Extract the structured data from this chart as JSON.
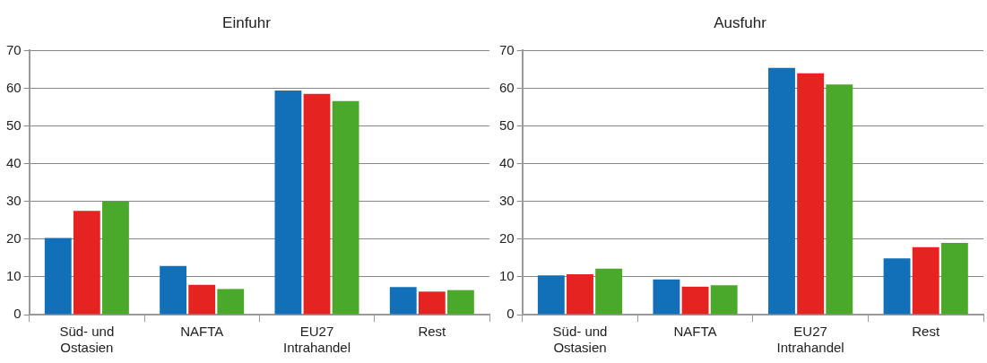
{
  "chart_data": [
    {
      "type": "bar",
      "title": "Einfuhr",
      "categories": [
        "Süd- und\nOstasien",
        "NAFTA",
        "EU27\nIntrahandel",
        "Rest"
      ],
      "series": [
        {
          "color": "#1170b8",
          "values": [
            20.3,
            12.9,
            59.4,
            7.3
          ]
        },
        {
          "color": "#e52421",
          "values": [
            27.5,
            7.9,
            58.5,
            6.1
          ]
        },
        {
          "color": "#4aa92a",
          "values": [
            30,
            6.8,
            56.6,
            6.5
          ]
        }
      ],
      "ylim": [
        0,
        70
      ],
      "yticks": [
        0,
        10,
        20,
        30,
        40,
        50,
        60,
        70
      ],
      "grid": "y",
      "legend": false
    },
    {
      "type": "bar",
      "title": "Ausfuhr",
      "categories": [
        "Süd- und\nOstasien",
        "NAFTA",
        "EU27\nIntrahandel",
        "Rest"
      ],
      "series": [
        {
          "color": "#1170b8",
          "values": [
            10.4,
            9.3,
            65.4,
            14.9
          ]
        },
        {
          "color": "#e52421",
          "values": [
            10.7,
            7.4,
            64,
            17.9
          ]
        },
        {
          "color": "#4aa92a",
          "values": [
            12.2,
            7.8,
            61,
            19
          ]
        }
      ],
      "ylim": [
        0,
        70
      ],
      "yticks": [
        0,
        10,
        20,
        30,
        40,
        50,
        60,
        70
      ],
      "grid": "y",
      "legend": false
    }
  ]
}
